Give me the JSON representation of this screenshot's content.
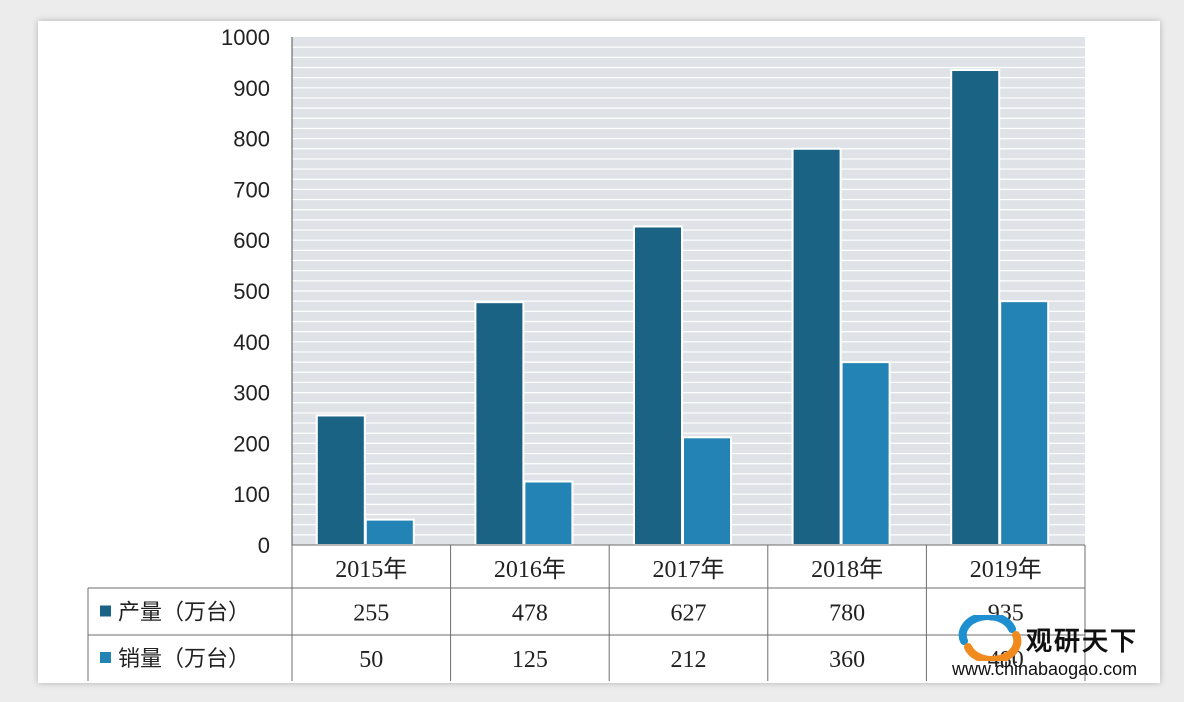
{
  "chart_data": {
    "type": "bar",
    "categories": [
      "2015年",
      "2016年",
      "2017年",
      "2018年",
      "2019年"
    ],
    "series": [
      {
        "name": "产量（万台）",
        "values": [
          255,
          478,
          627,
          780,
          935
        ],
        "color": "#1a6384"
      },
      {
        "name": "销量（万台）",
        "values": [
          50,
          125,
          212,
          360,
          480
        ],
        "color": "#2383b4"
      }
    ],
    "table_values": [
      [
        "255",
        "478",
        "627",
        "780",
        "935"
      ],
      [
        "50",
        "125",
        "212",
        "360",
        "480"
      ]
    ],
    "ylim": [
      0,
      1000
    ],
    "yticks": [
      0,
      100,
      200,
      300,
      400,
      500,
      600,
      700,
      800,
      900,
      1000
    ],
    "grid": true,
    "legend": "data-table"
  },
  "watermark": {
    "name": "观研天下",
    "url": "www.chinabaogao.com",
    "logo_colors": [
      "#1e8fd0",
      "#f08a1c"
    ]
  }
}
